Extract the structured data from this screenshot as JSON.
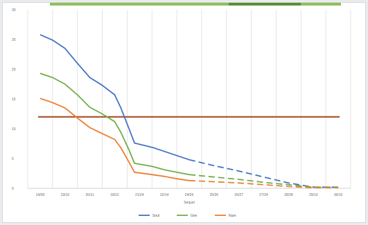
{
  "chart_data": {
    "type": "line",
    "x": [
      "14/09",
      "19/10",
      "20/11",
      "18/12",
      "21/24",
      "23/14",
      "24/26",
      "25/26",
      "26/27",
      "27/24",
      "28/28",
      "29/10",
      "30/10"
    ],
    "xlabel": "Sequel",
    "ylabel": "",
    "ylim": [
      0,
      30
    ],
    "yticks": [
      0,
      5,
      10,
      15,
      20,
      25,
      30
    ],
    "grid": "vertical",
    "legend": "bottom",
    "series": [
      {
        "name": "Soul",
        "color": "#4472c4",
        "solid": [
          [
            0,
            25.8
          ],
          [
            0.5,
            24.9
          ],
          [
            1,
            23.5
          ],
          [
            1.5,
            21.0
          ],
          [
            2,
            18.6
          ],
          [
            2.5,
            17.3
          ],
          [
            3,
            15.7
          ],
          [
            3.25,
            13.5
          ],
          [
            3.55,
            10.3
          ],
          [
            3.8,
            7.6
          ],
          [
            4.5,
            6.9
          ],
          [
            5,
            6.2
          ],
          [
            5.5,
            5.5
          ],
          [
            6,
            4.8
          ]
        ],
        "dashed": [
          [
            6,
            4.8
          ],
          [
            7,
            3.8
          ],
          [
            8,
            2.9
          ],
          [
            9,
            1.9
          ],
          [
            10,
            0.9
          ],
          [
            11,
            0.2
          ],
          [
            12,
            0.2
          ]
        ]
      },
      {
        "name": "Gen",
        "color": "#70ad47",
        "solid": [
          [
            0,
            19.3
          ],
          [
            0.5,
            18.6
          ],
          [
            1,
            17.5
          ],
          [
            1.5,
            15.7
          ],
          [
            2,
            13.6
          ],
          [
            2.5,
            12.5
          ],
          [
            3,
            11.2
          ],
          [
            3.25,
            9.4
          ],
          [
            3.55,
            6.7
          ],
          [
            3.8,
            4.2
          ],
          [
            4.5,
            3.7
          ],
          [
            5,
            3.1
          ],
          [
            5.5,
            2.7
          ],
          [
            6,
            2.3
          ]
        ],
        "dashed": [
          [
            6,
            2.3
          ],
          [
            7,
            1.9
          ],
          [
            8,
            1.5
          ],
          [
            9,
            1.0
          ],
          [
            10,
            0.6
          ],
          [
            11,
            0.2
          ],
          [
            12,
            0.2
          ]
        ]
      },
      {
        "name": "Num",
        "color": "#ed7d31",
        "solid": [
          [
            0,
            15.1
          ],
          [
            0.5,
            14.4
          ],
          [
            1,
            13.5
          ],
          [
            1.5,
            11.8
          ],
          [
            2,
            10.2
          ],
          [
            2.5,
            9.2
          ],
          [
            3,
            8.2
          ],
          [
            3.25,
            6.8
          ],
          [
            3.55,
            4.6
          ],
          [
            3.8,
            2.7
          ],
          [
            4.5,
            2.3
          ],
          [
            5,
            2.0
          ],
          [
            5.5,
            1.6
          ],
          [
            6,
            1.3
          ]
        ],
        "dashed": [
          [
            6,
            1.3
          ],
          [
            7,
            1.1
          ],
          [
            8,
            0.9
          ],
          [
            9,
            0.6
          ],
          [
            10,
            0.3
          ],
          [
            11,
            0.1
          ],
          [
            12,
            0.1
          ]
        ]
      }
    ],
    "reference_line": {
      "y": 12,
      "color": "#a5502a"
    }
  }
}
